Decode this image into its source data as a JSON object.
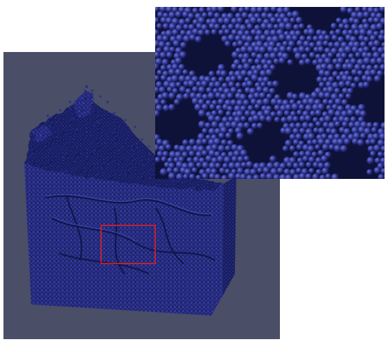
{
  "scene": {
    "background_color": "#4a4e66",
    "particle_color": "#2a2f85",
    "particle_highlight": "#4b53b8",
    "particle_shadow": "#12153f",
    "highlight_box_color": "#e02020"
  },
  "views": [
    {
      "label": "main-3d-view"
    },
    {
      "label": "zoom-inset-view"
    }
  ]
}
